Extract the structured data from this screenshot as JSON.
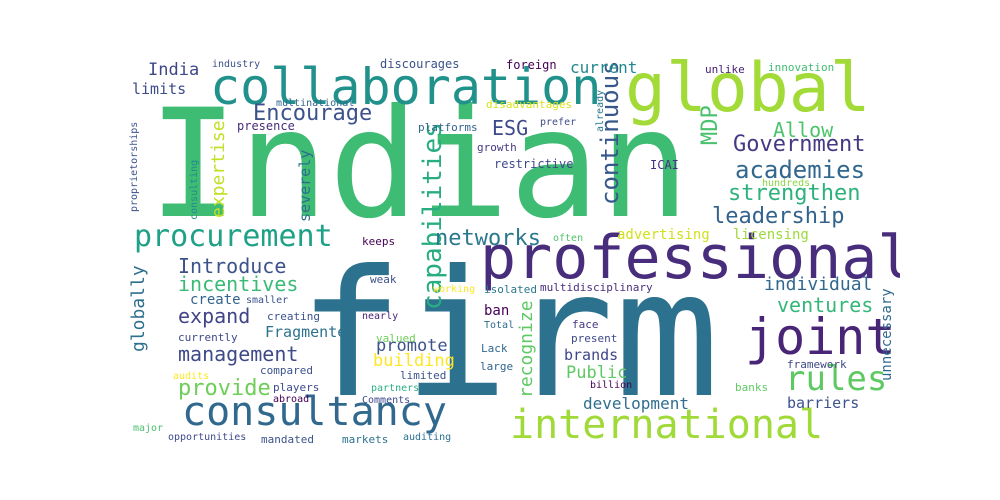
{
  "words": [
    {
      "text": "Indian",
      "color": "#3fbc73"
    },
    {
      "text": "firm",
      "color": "#2c728e"
    },
    {
      "text": "professional",
      "color": "#472d7b"
    },
    {
      "text": "global",
      "color": "#a2da37"
    },
    {
      "text": "collaboration",
      "color": "#21918c"
    },
    {
      "text": "consultancy",
      "color": "#31688e"
    },
    {
      "text": "international",
      "color": "#a0da39"
    },
    {
      "text": "joint",
      "color": "#482576"
    },
    {
      "text": "procurement",
      "color": "#1fa187"
    },
    {
      "text": "rules",
      "color": "#5ec962"
    },
    {
      "text": "capabilities",
      "color": "#27ad81"
    },
    {
      "text": "networks",
      "color": "#2a788e"
    },
    {
      "text": "Encourage",
      "color": "#3b528b"
    },
    {
      "text": "continuous",
      "color": "#38588c"
    },
    {
      "text": "academies",
      "color": "#31678e"
    },
    {
      "text": "Government",
      "color": "#443983"
    },
    {
      "text": "strengthen",
      "color": "#2db27d"
    },
    {
      "text": "leadership",
      "color": "#33638d"
    },
    {
      "text": "MDP",
      "color": "#4ac16d"
    },
    {
      "text": "Allow",
      "color": "#4ec36b"
    },
    {
      "text": "ESG",
      "color": "#3e4989"
    },
    {
      "text": "expertise",
      "color": "#c2df23"
    },
    {
      "text": "Introduce",
      "color": "#3b528b"
    },
    {
      "text": "incentives",
      "color": "#3aba76"
    },
    {
      "text": "expand",
      "color": "#414487"
    },
    {
      "text": "management",
      "color": "#3e4a89"
    },
    {
      "text": "provide",
      "color": "#6ece58"
    },
    {
      "text": "ventures",
      "color": "#35b779"
    },
    {
      "text": "individual",
      "color": "#31688e"
    },
    {
      "text": "globally",
      "color": "#2e6f8e"
    },
    {
      "text": "recognize",
      "color": "#5ec962"
    },
    {
      "text": "building",
      "color": "#fde725"
    },
    {
      "text": "promote",
      "color": "#3b528b"
    },
    {
      "text": "Fragmented",
      "color": "#2c728e"
    },
    {
      "text": "severely",
      "color": "#2e6e8e"
    },
    {
      "text": "India",
      "color": "#3f4788"
    },
    {
      "text": "current",
      "color": "#23888e"
    },
    {
      "text": "limits",
      "color": "#3d4d8a"
    },
    {
      "text": "Public",
      "color": "#5ec962"
    },
    {
      "text": "development",
      "color": "#2e6e8e"
    },
    {
      "text": "barriers",
      "color": "#3b528b"
    },
    {
      "text": "brands",
      "color": "#3f4788"
    },
    {
      "text": "unnecessary",
      "color": "#31688e"
    },
    {
      "text": "licensing",
      "color": "#9dd93b"
    },
    {
      "text": "advertising",
      "color": "#d0e11c"
    },
    {
      "text": "create",
      "color": "#33638d"
    },
    {
      "text": "ban",
      "color": "#440154"
    },
    {
      "text": "discourages",
      "color": "#3b528b"
    },
    {
      "text": "foreign",
      "color": "#440154"
    },
    {
      "text": "innovation",
      "color": "#3fbc73"
    },
    {
      "text": "unlike",
      "color": "#482173"
    },
    {
      "text": "industry",
      "color": "#3b528b"
    },
    {
      "text": "multinational",
      "color": "#31688e"
    },
    {
      "text": "disadvantages",
      "color": "#d8e219"
    },
    {
      "text": "already",
      "color": "#2a788e"
    },
    {
      "text": "presence",
      "color": "#472c7a"
    },
    {
      "text": "platforms",
      "color": "#32648e"
    },
    {
      "text": "prefer",
      "color": "#3e4c8a"
    },
    {
      "text": "growth",
      "color": "#443983"
    },
    {
      "text": "restrictive",
      "color": "#3e4989"
    },
    {
      "text": "ICAI",
      "color": "#46337f"
    },
    {
      "text": "proprietorships",
      "color": "#3b528b"
    },
    {
      "text": "consulting",
      "color": "#23898e"
    },
    {
      "text": "hundreds",
      "color": "#8bd646"
    },
    {
      "text": "keeps",
      "color": "#440154"
    },
    {
      "text": "often",
      "color": "#52c569"
    },
    {
      "text": "weak",
      "color": "#3b528b"
    },
    {
      "text": "working",
      "color": "#fde725"
    },
    {
      "text": "isolated",
      "color": "#2a788e"
    },
    {
      "text": "multidisciplinary",
      "color": "#46307e"
    },
    {
      "text": "smaller",
      "color": "#3b528b"
    },
    {
      "text": "creating",
      "color": "#3b528b"
    },
    {
      "text": "nearly",
      "color": "#482475"
    },
    {
      "text": "Total",
      "color": "#2f6b8e"
    },
    {
      "text": "face",
      "color": "#443983"
    },
    {
      "text": "present",
      "color": "#3e4989"
    },
    {
      "text": "currently",
      "color": "#3e4989"
    },
    {
      "text": "valued",
      "color": "#6ece58"
    },
    {
      "text": "Lack",
      "color": "#31688e"
    },
    {
      "text": "large",
      "color": "#33638d"
    },
    {
      "text": "limited",
      "color": "#3b528b"
    },
    {
      "text": "compared",
      "color": "#3b528b"
    },
    {
      "text": "audits",
      "color": "#fde725"
    },
    {
      "text": "players",
      "color": "#3e4989"
    },
    {
      "text": "partners",
      "color": "#2ab07f"
    },
    {
      "text": "abroad",
      "color": "#440154"
    },
    {
      "text": "Comments",
      "color": "#3e4989"
    },
    {
      "text": "billion",
      "color": "#440154"
    },
    {
      "text": "banks",
      "color": "#5ec962"
    },
    {
      "text": "framework",
      "color": "#3e4989"
    },
    {
      "text": "major",
      "color": "#4ac16d"
    },
    {
      "text": "opportunities",
      "color": "#3e4a89"
    },
    {
      "text": "mandated",
      "color": "#3b528b"
    },
    {
      "text": "markets",
      "color": "#2c728e"
    },
    {
      "text": "auditing",
      "color": "#2c728e"
    }
  ]
}
